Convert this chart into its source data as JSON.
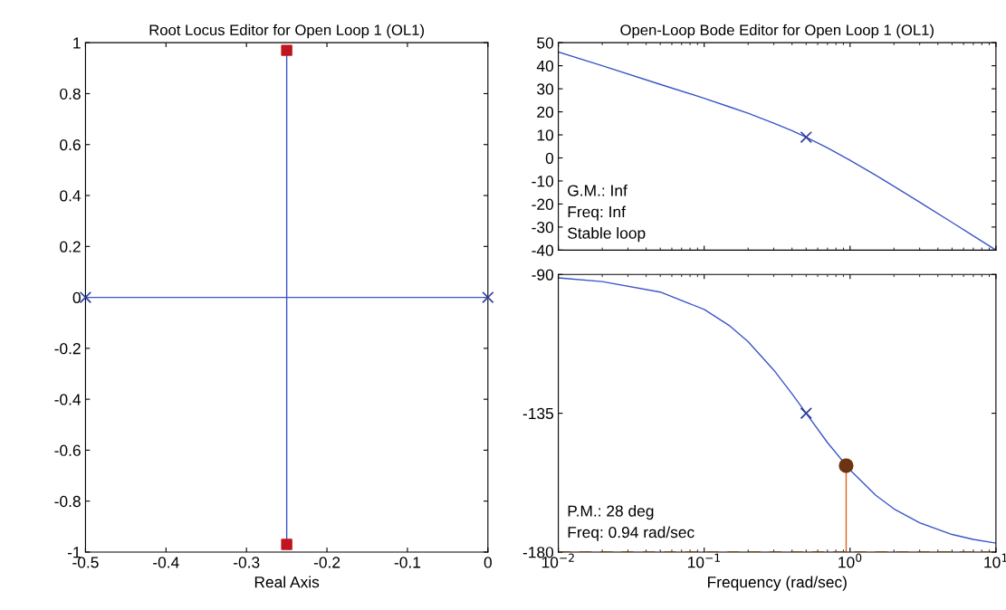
{
  "chart_data": [
    {
      "type": "line",
      "title": "Root Locus Editor for Open Loop 1 (OL1)",
      "xlabel": "Real Axis",
      "xlim": [
        -0.5,
        0
      ],
      "ylim": [
        -1,
        1
      ],
      "xticks": [
        -0.5,
        -0.4,
        -0.3,
        -0.2,
        -0.1,
        0
      ],
      "yticks": [
        -1,
        -0.8,
        -0.6,
        -0.4,
        -0.2,
        0,
        0.2,
        0.4,
        0.6,
        0.8,
        1
      ],
      "grid": false,
      "series": [
        {
          "color": "#3b55c8",
          "x": [
            -0.5,
            0
          ],
          "values": [
            0,
            0
          ],
          "marker": "none"
        },
        {
          "color": "#3b55c8",
          "x": [
            -0.25,
            -0.25
          ],
          "values": [
            -0.97,
            0.97
          ],
          "marker": "none"
        },
        {
          "type": "scatter",
          "color": "#2a3c9a",
          "x": [
            -0.5,
            0
          ],
          "values": [
            0,
            0
          ],
          "marker": "cross"
        },
        {
          "type": "scatter",
          "color": "#c0141e",
          "x": [
            -0.25,
            -0.25
          ],
          "values": [
            0.97,
            -0.97
          ],
          "marker": "square"
        }
      ]
    },
    {
      "type": "line",
      "title": "Open-Loop Bode Editor for Open Loop 1 (OL1)",
      "log": "x",
      "xlim": [
        0.01,
        10
      ],
      "ylim": [
        -40,
        50
      ],
      "yticks": [
        -40,
        -30,
        -20,
        -10,
        0,
        10,
        20,
        30,
        40,
        50
      ],
      "tick_labels": "y",
      "grid": false,
      "annotations": [
        "G.M.: Inf",
        "Freq: Inf",
        "Stable loop"
      ],
      "series": [
        {
          "color": "#3b55c8",
          "marker": "none",
          "x": [
            0.01,
            0.02,
            0.05,
            0.1,
            0.15,
            0.2,
            0.3,
            0.4,
            0.5,
            0.7,
            1,
            1.5,
            2,
            3,
            5,
            7,
            10
          ],
          "values": [
            46.0,
            40.0,
            31.9,
            25.9,
            22.1,
            19.4,
            15.1,
            11.8,
            9.0,
            4.4,
            -1.0,
            -7.5,
            -12.3,
            -19.2,
            -28.0,
            -33.8,
            -40.0
          ]
        },
        {
          "type": "scatter",
          "color": "#2a3c9a",
          "marker": "cross",
          "x": [
            0.5
          ],
          "values": [
            9.0
          ]
        }
      ]
    },
    {
      "type": "line",
      "xlabel": "Frequency (rad/sec)",
      "log": "x",
      "xlim": [
        0.01,
        10
      ],
      "ylim": [
        -180,
        -90
      ],
      "xticks": [
        {
          "value": 0.01,
          "label": "10$^{−2}$"
        },
        {
          "value": 0.1,
          "label": "10$^{−1}$"
        },
        {
          "value": 1,
          "label": "10$^{0}$"
        },
        {
          "value": 10,
          "label": "10$^{1}$"
        }
      ],
      "yticks": [
        -180,
        -135,
        -90
      ],
      "grid": false,
      "annotations": [
        "P.M.: 28 deg",
        "Freq: 0.94 rad/sec"
      ],
      "ref_lines": [
        {
          "axis": "y",
          "value": -180,
          "color": "#e07a20",
          "line_style": "dashed"
        }
      ],
      "series": [
        {
          "color": "#3b55c8",
          "marker": "none",
          "x": [
            0.01,
            0.02,
            0.05,
            0.1,
            0.15,
            0.2,
            0.3,
            0.4,
            0.5,
            0.7,
            1,
            1.5,
            2,
            3,
            5,
            7,
            10
          ],
          "values": [
            -91.1,
            -92.3,
            -95.7,
            -101.3,
            -106.7,
            -111.8,
            -121.0,
            -128.7,
            -135.0,
            -144.5,
            -153.4,
            -161.6,
            -166.0,
            -170.5,
            -174.3,
            -175.9,
            -177.1
          ]
        },
        {
          "type": "scatter",
          "color": "#2a3c9a",
          "marker": "cross",
          "x": [
            0.5
          ],
          "values": [
            -135.0
          ]
        },
        {
          "color": "#e0601a",
          "marker": "none",
          "x": [
            0.94,
            0.94
          ],
          "values": [
            -180,
            -152
          ]
        },
        {
          "type": "scatter",
          "color": "#6e3412",
          "marker": "circle",
          "x": [
            0.94
          ],
          "values": [
            -152
          ]
        }
      ]
    }
  ]
}
